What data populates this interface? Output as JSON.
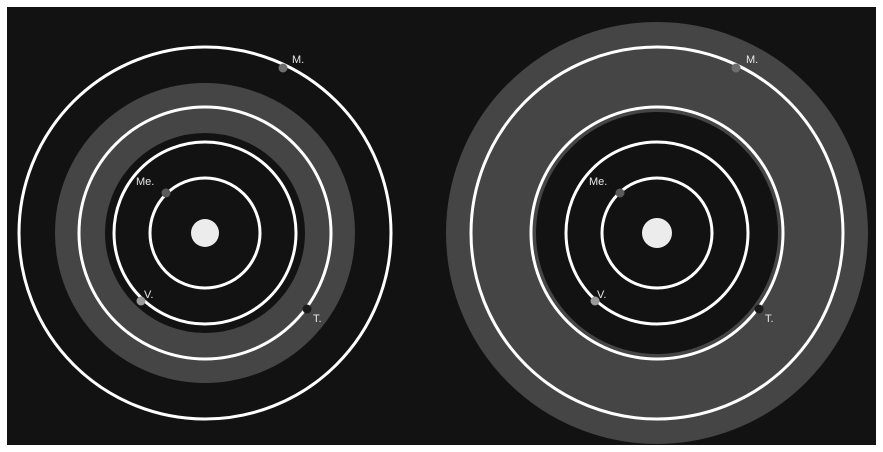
{
  "colors": {
    "background": "#121212",
    "habitable_zone": "#454545",
    "orbit": "#ffffff",
    "sun": "#ececec",
    "planet_label": "#e6e6e6",
    "planet_mercury": "#5a5a5a",
    "planet_venus": "#9a9a9a",
    "planet_mars": "#6e6e6e"
  },
  "diagrams": [
    {
      "id": "left",
      "labels": {
        "mars": "M.",
        "mercury": "Me.",
        "venus": "V.",
        "earth": "T."
      }
    },
    {
      "id": "right",
      "labels": {
        "mars": "M.",
        "mercury": "Me.",
        "venus": "V.",
        "earth": "T."
      }
    }
  ]
}
